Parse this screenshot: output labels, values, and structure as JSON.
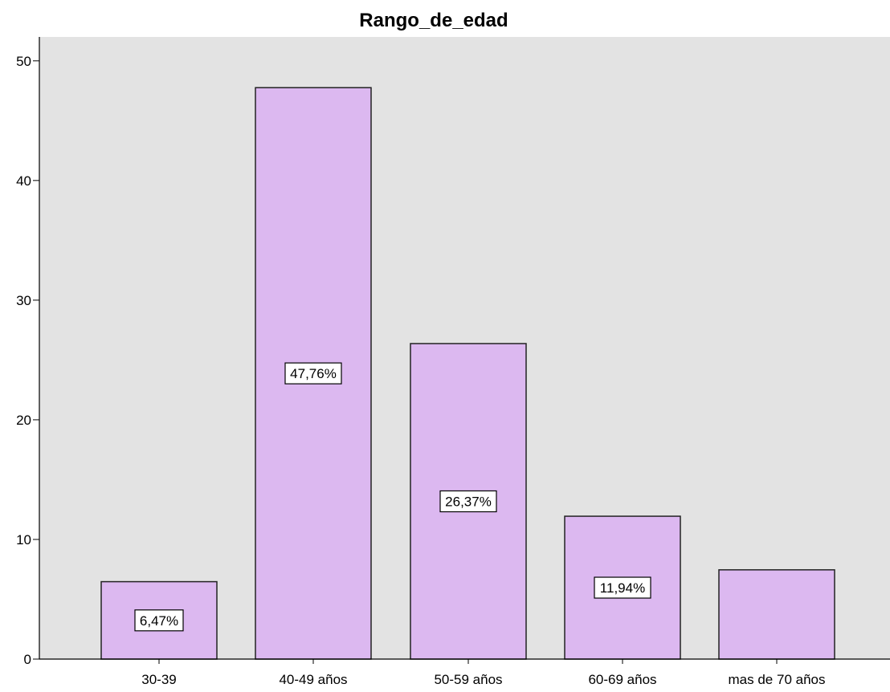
{
  "chart_data": {
    "type": "bar",
    "title": "Rango_de_edad",
    "categories": [
      "30-39",
      "40-49 años",
      "50-59 años",
      "60-69 años",
      "mas de  70 años"
    ],
    "values": [
      6.47,
      47.76,
      26.37,
      11.94,
      7.46
    ],
    "data_labels": [
      "6,47%",
      "47,76%",
      "26,37%",
      "11,94%",
      ""
    ],
    "ylim": [
      0,
      52
    ],
    "yticks": [
      0,
      10,
      20,
      30,
      40,
      50
    ],
    "xlabel": "",
    "ylabel": "",
    "grid": false,
    "colors": {
      "bar_fill": "#dcb8f0",
      "bar_stroke": "#222222",
      "plot_bg": "#e3e3e3",
      "label_bg": "#ffffff"
    }
  }
}
